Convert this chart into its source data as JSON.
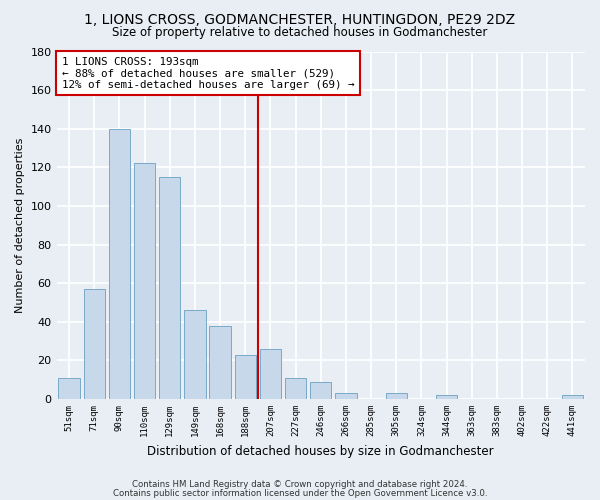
{
  "title": "1, LIONS CROSS, GODMANCHESTER, HUNTINGDON, PE29 2DZ",
  "subtitle": "Size of property relative to detached houses in Godmanchester",
  "xlabel": "Distribution of detached houses by size in Godmanchester",
  "ylabel": "Number of detached properties",
  "bar_color": "#c8d8eb",
  "bar_edge_color": "#7aaac8",
  "background_color": "#e8eef4",
  "grid_color": "white",
  "bin_labels": [
    "51sqm",
    "71sqm",
    "90sqm",
    "110sqm",
    "129sqm",
    "149sqm",
    "168sqm",
    "188sqm",
    "207sqm",
    "227sqm",
    "246sqm",
    "266sqm",
    "285sqm",
    "305sqm",
    "324sqm",
    "344sqm",
    "363sqm",
    "383sqm",
    "402sqm",
    "422sqm",
    "441sqm"
  ],
  "bar_values": [
    11,
    57,
    140,
    122,
    115,
    46,
    38,
    23,
    26,
    11,
    9,
    3,
    0,
    3,
    0,
    2,
    0,
    0,
    0,
    0,
    2
  ],
  "ylim": [
    0,
    180
  ],
  "yticks": [
    0,
    20,
    40,
    60,
    80,
    100,
    120,
    140,
    160,
    180
  ],
  "vline_x": 7.5,
  "vline_color": "#cc0000",
  "annotation_title": "1 LIONS CROSS: 193sqm",
  "annotation_line1": "← 88% of detached houses are smaller (529)",
  "annotation_line2": "12% of semi-detached houses are larger (69) →",
  "annotation_box_color": "white",
  "annotation_box_edge": "#cc0000",
  "footer1": "Contains HM Land Registry data © Crown copyright and database right 2024.",
  "footer2": "Contains public sector information licensed under the Open Government Licence v3.0."
}
